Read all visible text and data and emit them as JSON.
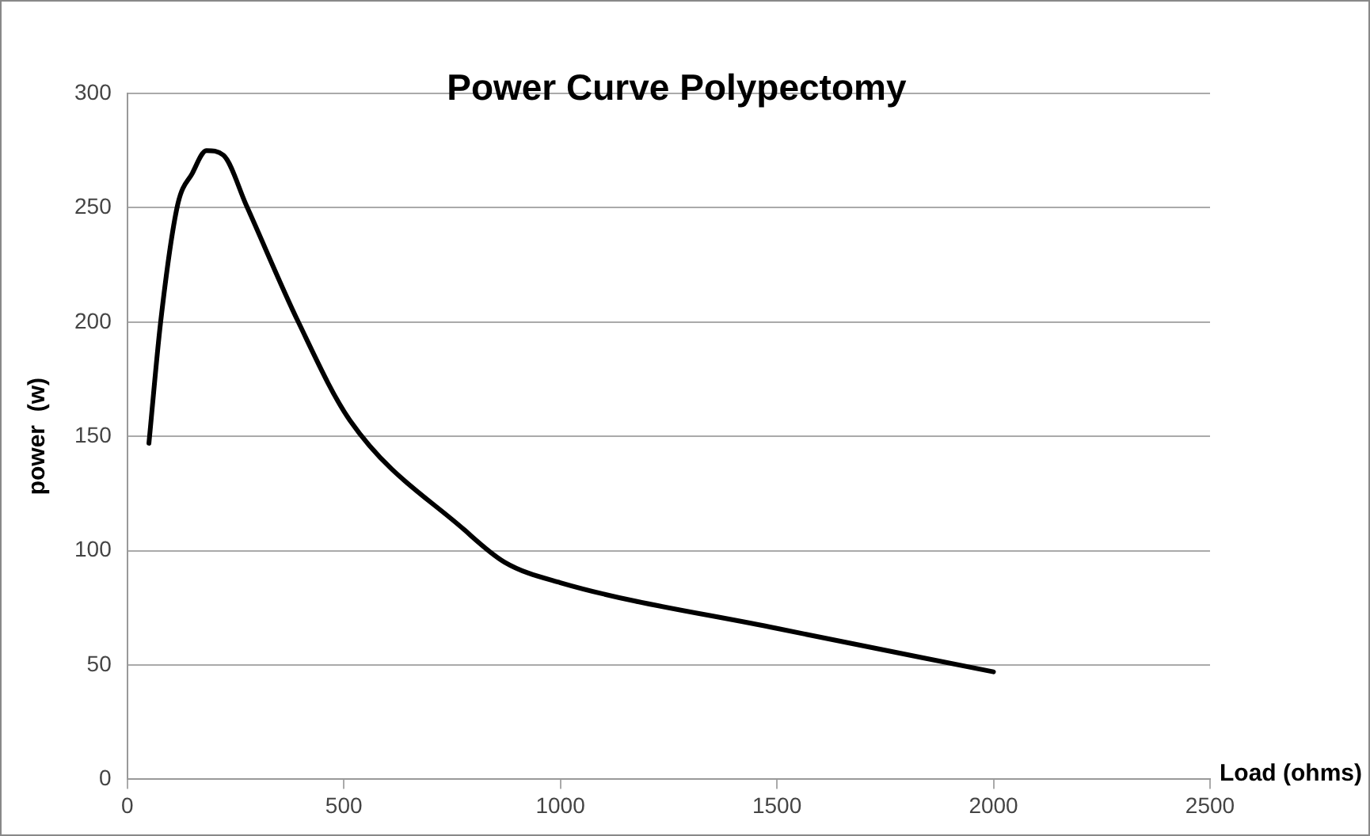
{
  "chart_data": {
    "type": "line",
    "title": "Power Curve Polypectomy",
    "xlabel": "Load (ohms)",
    "ylabel": "power  (w)",
    "x": [
      50,
      77,
      116,
      150,
      183,
      222,
      275,
      395,
      514,
      779,
      871,
      1000,
      1500,
      2000
    ],
    "series": [
      {
        "color": "#000000",
        "values": [
          147,
          200,
          251,
          265,
          275,
          273,
          251,
          200,
          157,
          109,
          95,
          86,
          66,
          47
        ]
      }
    ],
    "xlim": [
      0,
      2500
    ],
    "xticks": [
      0,
      500,
      1000,
      1500,
      2000,
      2500
    ],
    "ylim": [
      0,
      300
    ],
    "yticks": [
      0,
      50,
      100,
      150,
      200,
      250,
      300
    ],
    "grid": "y",
    "legend": false,
    "marker": "none",
    "line_style": "solid"
  }
}
